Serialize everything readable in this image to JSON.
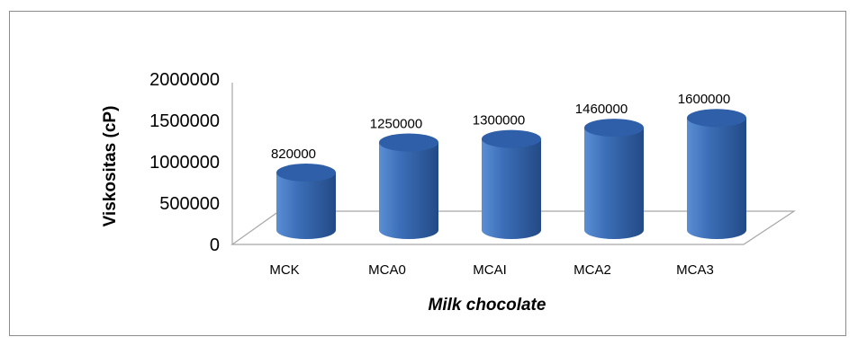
{
  "chart_data": {
    "type": "bar",
    "style": "3d-cylinder",
    "categories": [
      "MCK",
      "MCA0",
      "MCAI",
      "MCA2",
      "MCA3"
    ],
    "values": [
      820000,
      1250000,
      1300000,
      1460000,
      1600000
    ],
    "data_labels": [
      "820000",
      "1250000",
      "1300000",
      "1460000",
      "1600000"
    ],
    "y_ticks": [
      "0",
      "500000",
      "1000000",
      "1500000",
      "2000000"
    ],
    "ylim": [
      0,
      2000000
    ],
    "ylabel": "Viskositas (cP)",
    "xlabel": "Milk chocolate",
    "grid": false,
    "legend": "none",
    "colors": {
      "bar_light": "#5b8fd4",
      "bar_mid": "#3c6fb8",
      "bar_dark": "#234a86",
      "bar_top": "#2f5fa8",
      "wall_line": "#a6a6a6"
    }
  }
}
